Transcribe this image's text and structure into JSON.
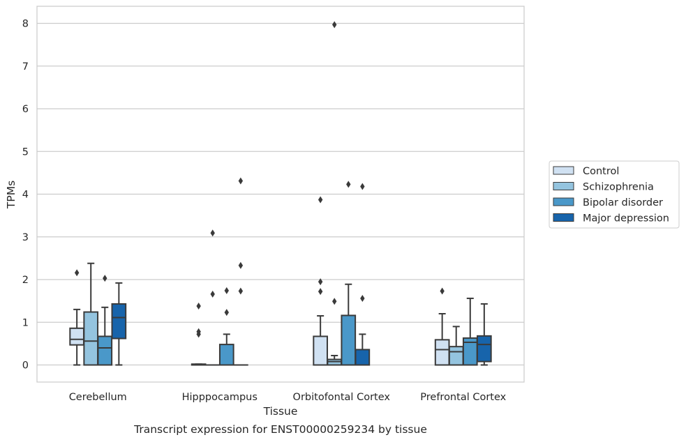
{
  "chart_data": {
    "type": "box",
    "xlabel": "Tissue",
    "ylabel": "TPMs",
    "caption": "Transcript expression for ENST00000259234 by tissue",
    "ylim": [
      -0.4,
      8.4
    ],
    "yticks": [
      0,
      1,
      2,
      3,
      4,
      5,
      6,
      7,
      8
    ],
    "grid": "horizontal",
    "legend_position": "right",
    "categories": [
      "Cerebellum",
      "Hipppocampus",
      "Orbitofontal Cortex",
      "Prefrontal Cortex"
    ],
    "series": [
      {
        "name": "Control",
        "color": "#d0e1f2",
        "boxes": [
          {
            "whislo": 0.0,
            "q1": 0.47,
            "med": 0.6,
            "q3": 0.86,
            "whishi": 1.3,
            "fliers": [
              2.16
            ]
          },
          {
            "whislo": 0.0,
            "q1": 0.0,
            "med": 0.0,
            "q3": 0.02,
            "whishi": 0.02,
            "fliers": [
              1.38,
              0.78,
              0.72
            ]
          },
          {
            "whislo": 0.0,
            "q1": 0.0,
            "med": 0.0,
            "q3": 0.67,
            "whishi": 1.15,
            "fliers": [
              3.87,
              1.95,
              1.72
            ]
          },
          {
            "whislo": 0.0,
            "q1": 0.0,
            "med": 0.36,
            "q3": 0.59,
            "whishi": 1.2,
            "fliers": [
              1.73
            ]
          }
        ]
      },
      {
        "name": "Schizophrenia",
        "color": "#94c4df",
        "boxes": [
          {
            "whislo": 0.0,
            "q1": 0.0,
            "med": 0.56,
            "q3": 1.24,
            "whishi": 2.38,
            "fliers": []
          },
          {
            "whislo": 0.0,
            "q1": 0.0,
            "med": 0.0,
            "q3": 0.0,
            "whishi": 0.0,
            "fliers": [
              3.09,
              1.66
            ]
          },
          {
            "whislo": 0.0,
            "q1": 0.0,
            "med": 0.08,
            "q3": 0.13,
            "whishi": 0.22,
            "fliers": [
              7.97,
              1.49
            ]
          },
          {
            "whislo": 0.0,
            "q1": 0.0,
            "med": 0.31,
            "q3": 0.43,
            "whishi": 0.9,
            "fliers": []
          }
        ]
      },
      {
        "name": "Bipolar disorder",
        "color": "#4a98c9",
        "boxes": [
          {
            "whislo": 0.0,
            "q1": 0.0,
            "med": 0.4,
            "q3": 0.67,
            "whishi": 1.35,
            "fliers": [
              2.03
            ]
          },
          {
            "whislo": 0.0,
            "q1": 0.0,
            "med": 0.0,
            "q3": 0.48,
            "whishi": 0.72,
            "fliers": [
              1.74,
              1.23
            ]
          },
          {
            "whislo": 0.0,
            "q1": 0.0,
            "med": 0.0,
            "q3": 1.16,
            "whishi": 1.89,
            "fliers": [
              4.23
            ]
          },
          {
            "whislo": 0.0,
            "q1": 0.0,
            "med": 0.53,
            "q3": 0.63,
            "whishi": 1.56,
            "fliers": []
          }
        ]
      },
      {
        "name": "Major depression",
        "color": "#1764ab",
        "boxes": [
          {
            "whislo": 0.0,
            "q1": 0.62,
            "med": 1.11,
            "q3": 1.43,
            "whishi": 1.92,
            "fliers": []
          },
          {
            "whislo": 0.0,
            "q1": 0.0,
            "med": 0.0,
            "q3": 0.0,
            "whishi": 0.0,
            "fliers": [
              4.31,
              2.33,
              1.73
            ]
          },
          {
            "whislo": 0.0,
            "q1": 0.0,
            "med": 0.0,
            "q3": 0.36,
            "whishi": 0.72,
            "fliers": [
              4.18,
              1.56
            ]
          },
          {
            "whislo": 0.0,
            "q1": 0.08,
            "med": 0.48,
            "q3": 0.68,
            "whishi": 1.43,
            "fliers": []
          }
        ]
      }
    ]
  }
}
